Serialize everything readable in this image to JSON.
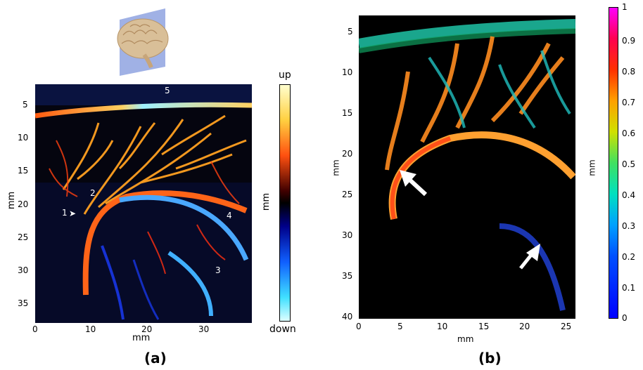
{
  "panel_a": {
    "label": "(a)",
    "xlabel": "mm",
    "ylabel": "mm",
    "x_ticks": [
      "0",
      "10",
      "20",
      "30"
    ],
    "y_ticks": [
      "5",
      "10",
      "15",
      "20",
      "25",
      "30",
      "35"
    ],
    "annotations": [
      "1",
      "2",
      "3",
      "4",
      "5"
    ],
    "colorbar": {
      "top_label": "up",
      "bottom_label": "down",
      "side_label": "mm"
    }
  },
  "panel_b": {
    "label": "(b)",
    "xlabel": "mm",
    "ylabel": "mm",
    "x_ticks": [
      "0",
      "5",
      "10",
      "15",
      "20",
      "25"
    ],
    "y_ticks": [
      "5",
      "10",
      "15",
      "20",
      "25",
      "30",
      "35",
      "40"
    ],
    "colorbar": {
      "side_label": "mm",
      "ticks": [
        "1",
        "0.9",
        "0.8",
        "0.7",
        "0.6",
        "0.5",
        "0.4",
        "0.3",
        "0.2",
        "0.1",
        "0"
      ]
    }
  }
}
